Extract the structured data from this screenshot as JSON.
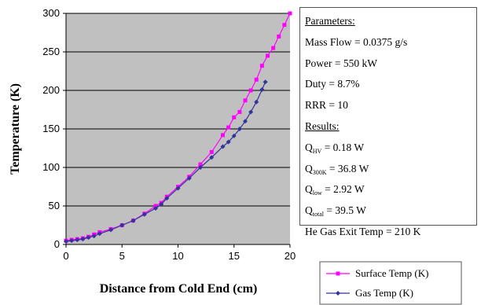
{
  "chart_data": {
    "type": "line",
    "xlabel": "Distance from Cold End (cm)",
    "ylabel": "Temperature (K)",
    "xlim": [
      0,
      20
    ],
    "ylim": [
      0,
      300
    ],
    "x_ticks": [
      0,
      5,
      10,
      15,
      20
    ],
    "y_ticks": [
      0,
      50,
      100,
      150,
      200,
      250,
      300
    ],
    "grid": "horizontal",
    "plot_background": "#c0c0c0",
    "legend_position": "bottom-right",
    "series": [
      {
        "name": "Surface Temp (K)",
        "color": "#ff00ff",
        "marker": "square",
        "x": [
          0,
          0.5,
          1,
          1.5,
          2,
          2.5,
          3,
          4,
          5,
          6,
          7,
          8,
          8.5,
          9,
          10,
          11,
          12,
          13,
          14,
          14.5,
          15,
          15.5,
          16,
          16.5,
          17,
          17.5,
          18,
          18.5,
          19,
          19.5,
          20
        ],
        "y": [
          5,
          6,
          7,
          8,
          10,
          13,
          16,
          20,
          25,
          31,
          40,
          50,
          54,
          62,
          75,
          88,
          104,
          120,
          142,
          152,
          165,
          172,
          187,
          200,
          214,
          232,
          245,
          255,
          270,
          285,
          300
        ]
      },
      {
        "name": "Gas Temp (K)",
        "color": "#333399",
        "marker": "diamond",
        "x": [
          0,
          0.5,
          1,
          1.5,
          2,
          2.5,
          3,
          4,
          5,
          6,
          7,
          8,
          8.5,
          9,
          10,
          11,
          12,
          13,
          14,
          14.5,
          15,
          15.5,
          16,
          16.5,
          17,
          17.5,
          17.8
        ],
        "y": [
          4,
          5,
          6,
          7,
          9,
          11,
          14,
          19,
          25,
          31,
          39,
          47,
          52,
          60,
          73,
          86,
          100,
          113,
          127,
          133,
          141,
          150,
          160,
          172,
          185,
          201,
          211
        ]
      }
    ]
  },
  "params_box": {
    "parameters_header": "Parameters:",
    "mass_flow": "Mass Flow = 0.0375 g/s",
    "power": "Power = 550 kW",
    "duty": "Duty = 8.7%",
    "rrr": "RRR = 10",
    "results_header": "Results:",
    "q_hv": {
      "prefix": "Q",
      "sub": "HV",
      "rest": " = 0.18 W"
    },
    "q_300k": {
      "prefix": "Q",
      "sub": "300K",
      "rest": " = 36.8 W"
    },
    "q_low": {
      "prefix": "Q",
      "sub": "low",
      "rest": " = 2.92 W"
    },
    "q_total": {
      "prefix": "Q",
      "sub": "total",
      "rest": " = 39.5 W"
    },
    "he_gas_exit": "He Gas Exit Temp = 210 K"
  }
}
